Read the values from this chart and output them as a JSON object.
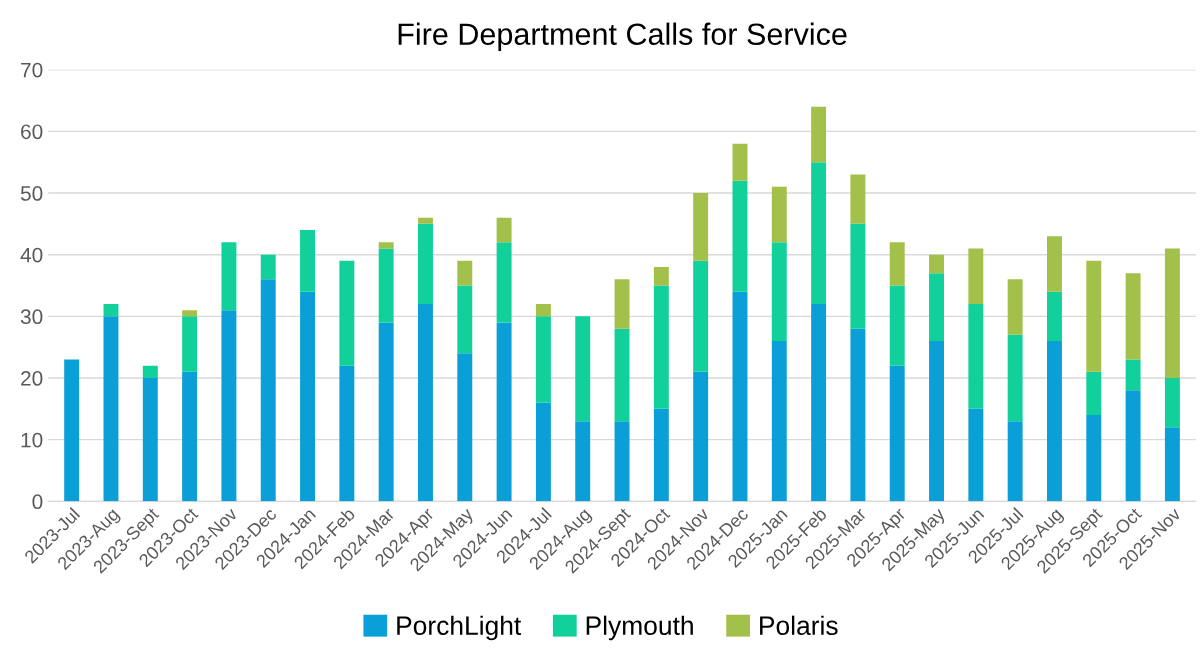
{
  "chart_data": {
    "type": "bar",
    "title": "Fire Department Calls for Service",
    "categories": [
      "2023-Jul",
      "2023-Aug",
      "2023-Sept",
      "2023-Oct",
      "2023-Nov",
      "2023-Dec",
      "2024-Jan",
      "2024-Feb",
      "2024-Mar",
      "2024-Apr",
      "2024-May",
      "2024-Jun",
      "2024-Jul",
      "2024-Aug",
      "2024-Sept",
      "2024-Oct",
      "2024-Nov",
      "2024-Dec",
      "2025-Jan",
      "2025-Feb",
      "2025-Mar",
      "2025-Apr",
      "2025-May",
      "2025-Jun",
      "2025-Jul",
      "2025-Aug",
      "2025-Sept",
      "2025-Oct",
      "2025-Nov"
    ],
    "series": [
      {
        "name": "PorchLight",
        "color": "#0b9fd8",
        "values": [
          23,
          30,
          20,
          21,
          31,
          36,
          34,
          22,
          29,
          32,
          24,
          29,
          16,
          13,
          13,
          15,
          21,
          34,
          26,
          32,
          28,
          22,
          26,
          15,
          13,
          26,
          14,
          18,
          12
        ]
      },
      {
        "name": "Plymouth",
        "color": "#12d09a",
        "values": [
          0,
          2,
          2,
          9,
          11,
          4,
          10,
          17,
          12,
          13,
          11,
          13,
          14,
          17,
          15,
          20,
          18,
          18,
          16,
          23,
          17,
          13,
          11,
          17,
          14,
          8,
          7,
          5,
          8
        ]
      },
      {
        "name": "Polaris",
        "color": "#a2c04a",
        "values": [
          0,
          0,
          0,
          1,
          0,
          0,
          0,
          0,
          1,
          1,
          4,
          4,
          2,
          0,
          8,
          3,
          11,
          6,
          9,
          9,
          8,
          7,
          3,
          9,
          9,
          9,
          18,
          14,
          21
        ]
      }
    ],
    "stacked": true,
    "ylim": [
      0,
      70
    ],
    "yticks": [
      0,
      10,
      20,
      30,
      40,
      50,
      60,
      70
    ],
    "grid": "y",
    "legend": "bottom"
  }
}
